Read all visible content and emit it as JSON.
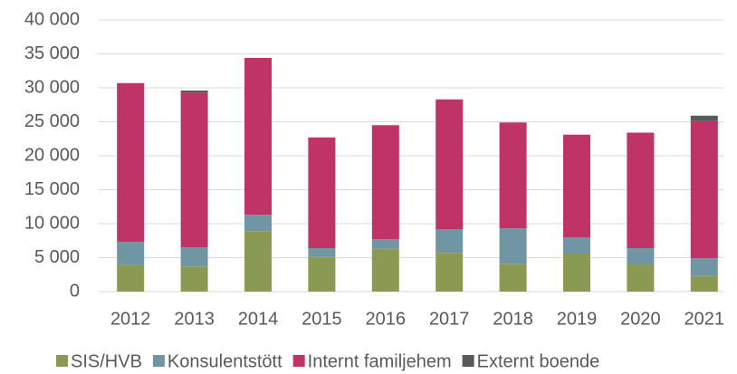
{
  "chart_data": {
    "type": "stacked_bar",
    "categories": [
      "2012",
      "2013",
      "2014",
      "2015",
      "2016",
      "2017",
      "2018",
      "2019",
      "2020",
      "2021"
    ],
    "series": [
      {
        "name": "SIS/HVB",
        "color": "#8b9a52",
        "values": [
          3900,
          3700,
          8900,
          5100,
          6300,
          5700,
          4100,
          5600,
          4000,
          2300
        ]
      },
      {
        "name": "Konsulentstött",
        "color": "#6f96a2",
        "values": [
          3400,
          2800,
          2400,
          1300,
          1400,
          3500,
          5200,
          2400,
          2400,
          2600
        ]
      },
      {
        "name": "Internt familjehem",
        "color": "#c03367",
        "values": [
          23400,
          22800,
          23100,
          16300,
          16800,
          19100,
          15600,
          15100,
          17000,
          20200
        ]
      },
      {
        "name": "Externt boende",
        "color": "#595959",
        "values": [
          0,
          300,
          0,
          0,
          0,
          0,
          0,
          0,
          0,
          800
        ]
      }
    ],
    "ylim": [
      0,
      40000
    ],
    "yticks": [
      0,
      {
        "value": 5000,
        "label": "5 000"
      },
      {
        "value": 10000,
        "label": "10 000"
      },
      {
        "value": 15000,
        "label": "15 000"
      },
      {
        "value": 20000,
        "label": "20 000"
      },
      {
        "value": 25000,
        "label": "25 000"
      },
      {
        "value": 30000,
        "label": "30 000"
      },
      {
        "value": 35000,
        "label": "35 000"
      },
      {
        "value": 40000,
        "label": "40 000"
      }
    ],
    "grid": true
  }
}
